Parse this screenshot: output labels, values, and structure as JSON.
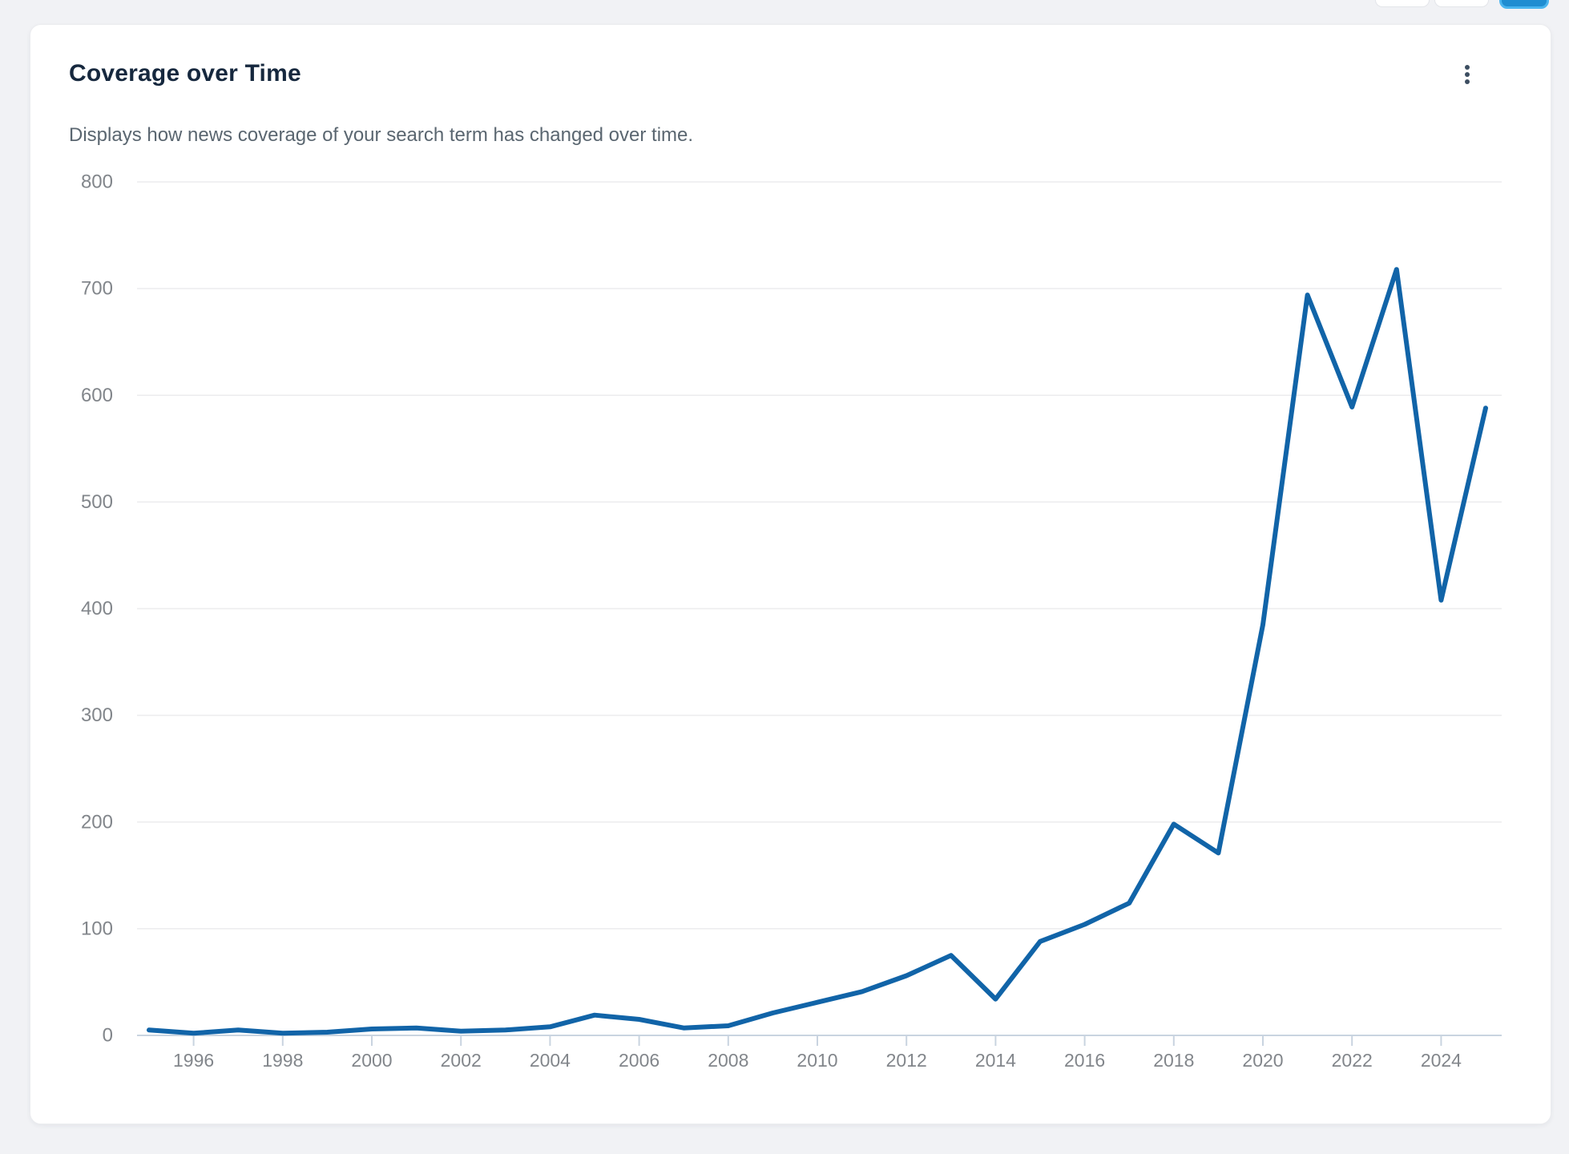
{
  "page": {
    "background_color": "#f1f2f5"
  },
  "top_toolbar": {
    "buttons": [
      {
        "name": "toolbar-button-1",
        "style": "white"
      },
      {
        "name": "toolbar-button-2",
        "style": "white"
      },
      {
        "name": "toolbar-button-primary",
        "style": "blue",
        "color": "#1f8dd1"
      }
    ]
  },
  "card": {
    "title": "Coverage over Time",
    "subtitle": "Displays how news coverage of your search term has changed over time.",
    "menu_icon": "kebab-vertical-icon"
  },
  "chart_data": {
    "type": "line",
    "title": "Coverage over Time",
    "x": [
      1995,
      1996,
      1997,
      1998,
      1999,
      2000,
      2001,
      2002,
      2003,
      2004,
      2005,
      2006,
      2007,
      2008,
      2009,
      2010,
      2011,
      2012,
      2013,
      2014,
      2015,
      2016,
      2017,
      2018,
      2019,
      2020,
      2021,
      2022,
      2023,
      2024,
      2025
    ],
    "values": [
      5,
      2,
      5,
      2,
      3,
      6,
      7,
      4,
      5,
      8,
      19,
      15,
      7,
      9,
      21,
      31,
      41,
      56,
      75,
      34,
      88,
      104,
      124,
      198,
      171,
      385,
      694,
      589,
      718,
      408,
      588
    ],
    "ylim": [
      0,
      800
    ],
    "ytick_interval": 100,
    "ytick_labels": [
      "0",
      "100",
      "200",
      "300",
      "400",
      "500",
      "600",
      "700",
      "800"
    ],
    "xtick_labels": [
      "1996",
      "1998",
      "2000",
      "2002",
      "2004",
      "2006",
      "2008",
      "2010",
      "2012",
      "2014",
      "2016",
      "2018",
      "2020",
      "2022",
      "2024"
    ],
    "grid": "horizontal",
    "legend_position": "none",
    "line_color": "#1164a8",
    "axis_color": "#c9d4e0",
    "grid_color": "#ececee",
    "tick_label_color": "#82868b"
  }
}
